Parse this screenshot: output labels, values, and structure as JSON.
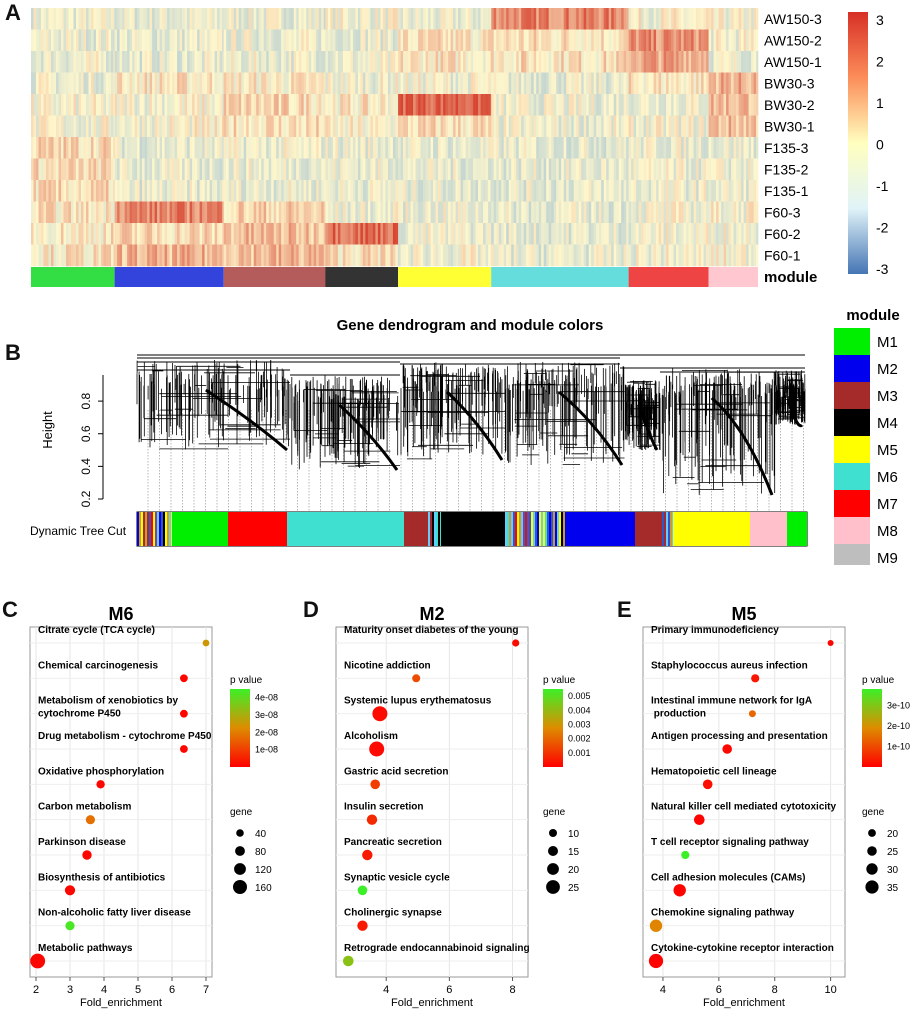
{
  "panel_letters": {
    "a": "A",
    "b": "B",
    "c": "C",
    "d": "D",
    "e": "E"
  },
  "heatmap": {
    "rows": [
      "AW150-3",
      "AW150-2",
      "AW150-1",
      "BW30-3",
      "BW30-2",
      "BW30-1",
      "F135-3",
      "F135-2",
      "F135-1",
      "F60-3",
      "F60-2",
      "F60-1"
    ],
    "module_label": "module",
    "module_colors": [
      "#33dd44",
      "#3344dd",
      "#b45c5c",
      "#333333",
      "#ffff33",
      "#66dddd",
      "#ee4444",
      "#ffc8d0"
    ],
    "colorbar_ticks": [
      "3",
      "2",
      "1",
      "0",
      "-1",
      "-2",
      "-3"
    ],
    "colors": {
      "high": "#d73027",
      "mid": "#ffffbf",
      "low": "#4575b4"
    }
  },
  "dendrogram": {
    "title": "Gene dendrogram and module colors",
    "ylabel": "Height",
    "yticks": [
      "0.2",
      "0.4",
      "0.6",
      "0.8"
    ],
    "ylim": [
      0.2,
      1.0
    ],
    "tree_cut_label": "Dynamic Tree Cut",
    "legend_title": "module",
    "legend": [
      {
        "label": "M1",
        "color": "#00ee00"
      },
      {
        "label": "M2",
        "color": "#0000ee"
      },
      {
        "label": "M3",
        "color": "#a52a2a"
      },
      {
        "label": "M4",
        "color": "#000000"
      },
      {
        "label": "M5",
        "color": "#ffff00"
      },
      {
        "label": "M6",
        "color": "#40e0d0"
      },
      {
        "label": "M7",
        "color": "#ff0000"
      },
      {
        "label": "M8",
        "color": "#ffc0cb"
      },
      {
        "label": "M9",
        "color": "#bebebe"
      }
    ]
  },
  "chart_data": [
    {
      "type": "scatter",
      "title": "M6",
      "xlabel": "Fold_enrichment",
      "xlim": [
        2,
        7
      ],
      "xticks": [
        2,
        3,
        4,
        5,
        6,
        7
      ],
      "legend_color_title": "p value",
      "legend_color_ticks": [
        "4e-08",
        "3e-08",
        "2e-08",
        "1e-08"
      ],
      "legend_color_range": [
        0,
        4.5e-08
      ],
      "legend_size_title": "gene",
      "legend_size_ticks": [
        40,
        80,
        120,
        160
      ],
      "size_range": [
        10,
        180
      ],
      "categories": [
        "Citrate cycle (TCA cycle)",
        "Chemical carcinogenesis",
        "Metabolism of xenobiotics by cytochrome P450",
        "Drug metabolism - cytochrome P450",
        "Oxidative phosphorylation",
        "Carbon metabolism",
        "Parkinson disease",
        "Biosynthesis of antibiotics",
        "Non-alcoholic fatty liver disease",
        "Metabolic pathways"
      ],
      "x": [
        7.0,
        6.35,
        6.35,
        6.35,
        3.9,
        3.6,
        3.5,
        3.0,
        3.0,
        2.05
      ],
      "p": [
        2.5e-08,
        1e-09,
        1e-09,
        1e-09,
        1e-09,
        1.8e-08,
        1e-09,
        1e-09,
        4.3e-08,
        1e-09
      ],
      "gene": [
        25,
        45,
        45,
        45,
        55,
        70,
        75,
        90,
        70,
        175
      ]
    },
    {
      "type": "scatter",
      "title": "M2",
      "xlabel": "Fold_enrichment",
      "xlim": [
        2.6,
        8.3
      ],
      "xticks": [
        4,
        6,
        8
      ],
      "legend_color_title": "p value",
      "legend_color_ticks": [
        "0.005",
        "0.004",
        "0.003",
        "0.002",
        "0.001"
      ],
      "legend_color_range": [
        0,
        0.0055
      ],
      "legend_size_title": "gene",
      "legend_size_ticks": [
        10,
        15,
        20,
        25
      ],
      "size_range": [
        5,
        28
      ],
      "categories": [
        "Maturity onset diabetes of the young",
        "Nicotine addiction",
        "Systemic lupus erythematosus",
        "Alcoholism",
        "Gastric acid secretion",
        "Insulin secretion",
        "Pancreatic secretion",
        "Synaptic vesicle cycle",
        "Cholinergic synapse",
        "Retrograde endocannabinoid signaling"
      ],
      "x": [
        8.1,
        4.95,
        3.8,
        3.7,
        3.65,
        3.55,
        3.4,
        3.25,
        3.25,
        2.8
      ],
      "p": [
        0.0002,
        0.0015,
        0.0002,
        0.0002,
        0.0012,
        0.0008,
        0.0005,
        0.0055,
        0.0005,
        0.0042
      ],
      "gene": [
        8,
        10,
        28,
        28,
        14,
        16,
        16,
        14,
        16,
        17
      ]
    },
    {
      "type": "scatter",
      "title": "M5",
      "xlabel": "Fold_enrichment",
      "xlim": [
        3.5,
        10.3
      ],
      "xticks": [
        4,
        6,
        8,
        10
      ],
      "legend_color_title": "p value",
      "legend_color_ticks": [
        "3e-10",
        "2e-10",
        "1e-10"
      ],
      "legend_color_range": [
        0,
        3.8e-10
      ],
      "legend_size_title": "gene",
      "legend_size_ticks": [
        20,
        25,
        30,
        35
      ],
      "size_range": [
        15,
        40
      ],
      "categories": [
        "Primary immunodeficiency",
        "Staphylococcus aureus infection",
        "Intestinal immune network for IgA production",
        "Antigen processing and presentation",
        "Hematopoietic cell lineage",
        "Natural killer cell mediated cytotoxicity",
        "T cell receptor signaling pathway",
        "Cell adhesion molecules (CAMs)",
        "Chemokine signaling pathway",
        "Cytokine-cytokine receptor interaction"
      ],
      "x": [
        10.0,
        7.3,
        7.2,
        6.3,
        5.6,
        5.3,
        4.8,
        4.6,
        3.75,
        3.75
      ],
      "p": [
        5e-12,
        3e-11,
        1.4e-10,
        1e-11,
        2e-11,
        5e-12,
        3.8e-10,
        5e-12,
        1.8e-10,
        5e-12
      ],
      "gene": [
        15,
        21,
        18,
        25,
        25,
        28,
        21,
        33,
        33,
        38
      ]
    }
  ]
}
